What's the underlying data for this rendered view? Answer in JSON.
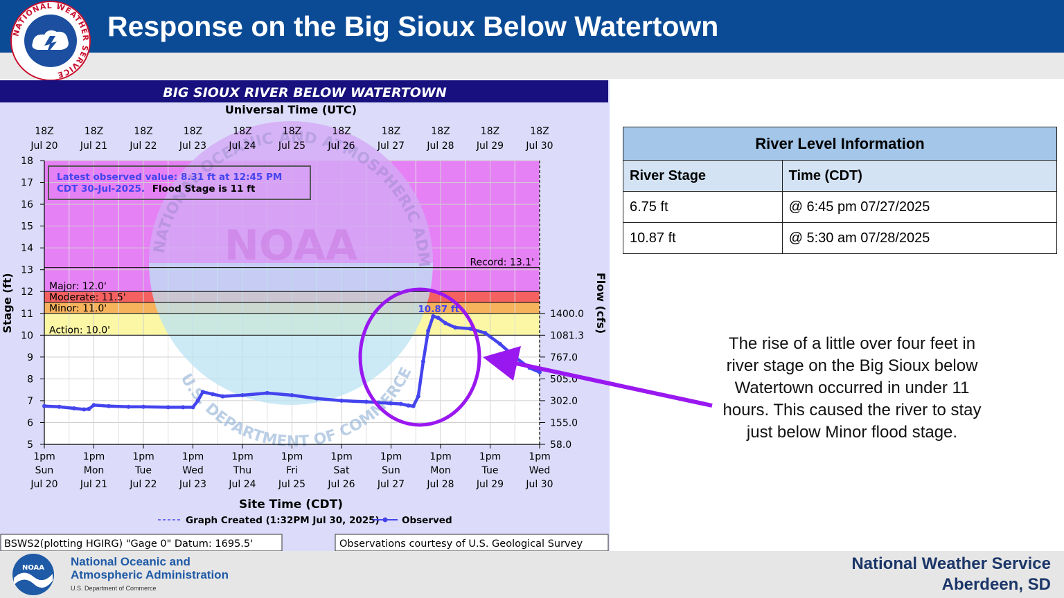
{
  "header": {
    "title": "Response on the Big Sioux Below Watertown"
  },
  "nws_logo": {
    "text": "NATIONAL WEATHER SERVICE"
  },
  "chart_data": {
    "type": "line",
    "title": "BIG SIOUX RIVER BELOW WATERTOWN",
    "top_axis_title": "Universal Time (UTC)",
    "bottom_axis_title": "Site Time (CDT)",
    "ylabel": "Stage (ft)",
    "y2label": "Flow (cfs)",
    "ylim": [
      5,
      18
    ],
    "yticks": [
      "5",
      "6",
      "7",
      "8",
      "9",
      "10",
      "11",
      "12",
      "13",
      "14",
      "15",
      "16",
      "17",
      "18"
    ],
    "flow_ticks": [
      {
        "stage": 5,
        "label": "58.0"
      },
      {
        "stage": 6,
        "label": "155.0"
      },
      {
        "stage": 7,
        "label": "302.0"
      },
      {
        "stage": 8,
        "label": "505.0"
      },
      {
        "stage": 9,
        "label": "767.0"
      },
      {
        "stage": 10,
        "label": "1081.3"
      },
      {
        "stage": 11,
        "label": "1400.0"
      }
    ],
    "xlim": [
      0,
      10
    ],
    "top_ticks": [
      {
        "a": "18Z",
        "b": "Jul 20"
      },
      {
        "a": "18Z",
        "b": "Jul 21"
      },
      {
        "a": "18Z",
        "b": "Jul 22"
      },
      {
        "a": "18Z",
        "b": "Jul 23"
      },
      {
        "a": "18Z",
        "b": "Jul 24"
      },
      {
        "a": "18Z",
        "b": "Jul 25"
      },
      {
        "a": "18Z",
        "b": "Jul 26"
      },
      {
        "a": "18Z",
        "b": "Jul 27"
      },
      {
        "a": "18Z",
        "b": "Jul 28"
      },
      {
        "a": "18Z",
        "b": "Jul 29"
      },
      {
        "a": "18Z",
        "b": "Jul 30"
      }
    ],
    "bottom_ticks": [
      {
        "a": "1pm",
        "b": "Sun",
        "c": "Jul 20"
      },
      {
        "a": "1pm",
        "b": "Mon",
        "c": "Jul 21"
      },
      {
        "a": "1pm",
        "b": "Tue",
        "c": "Jul 22"
      },
      {
        "a": "1pm",
        "b": "Wed",
        "c": "Jul 23"
      },
      {
        "a": "1pm",
        "b": "Thu",
        "c": "Jul 24"
      },
      {
        "a": "1pm",
        "b": "Fri",
        "c": "Jul 25"
      },
      {
        "a": "1pm",
        "b": "Sat",
        "c": "Jul 26"
      },
      {
        "a": "1pm",
        "b": "Sun",
        "c": "Jul 27"
      },
      {
        "a": "1pm",
        "b": "Mon",
        "c": "Jul 28"
      },
      {
        "a": "1pm",
        "b": "Tue",
        "c": "Jul 29"
      },
      {
        "a": "1pm",
        "b": "Wed",
        "c": "Jul 30"
      }
    ],
    "thresholds": [
      {
        "label": "Record: 13.1'",
        "value": 13.1
      },
      {
        "label": "Major: 12.0'",
        "value": 12.0
      },
      {
        "label": "Moderate: 11.5'",
        "value": 11.5
      },
      {
        "label": "Minor: 11.0'",
        "value": 11.0
      },
      {
        "label": "Action: 10.0'",
        "value": 10.0
      }
    ],
    "bands": [
      {
        "from": 13.1,
        "to": 18,
        "color": "#e680f5"
      },
      {
        "from": 12.0,
        "to": 13.1,
        "color": "#e680f5"
      },
      {
        "from": 11.5,
        "to": 12.0,
        "color": "#f56060"
      },
      {
        "from": 11.0,
        "to": 11.5,
        "color": "#f7b25c"
      },
      {
        "from": 10.0,
        "to": 11.0,
        "color": "#fbf7a4"
      }
    ],
    "series": [
      {
        "name": "Observed",
        "color": "#4444ee",
        "x": [
          0,
          0.3,
          0.6,
          0.8,
          0.9,
          1.0,
          1.3,
          1.7,
          2.0,
          2.5,
          2.8,
          3.0,
          3.1,
          3.2,
          3.4,
          3.6,
          4.0,
          4.5,
          5.0,
          5.5,
          6.0,
          6.5,
          7.0,
          7.2,
          7.35,
          7.45,
          7.55,
          7.65,
          7.75,
          7.85,
          7.95,
          8.1,
          8.3,
          8.6,
          8.9,
          9.2,
          9.5,
          9.8,
          10.0
        ],
        "y": [
          6.75,
          6.72,
          6.65,
          6.6,
          6.62,
          6.8,
          6.75,
          6.72,
          6.72,
          6.7,
          6.7,
          6.7,
          7.0,
          7.4,
          7.3,
          7.2,
          7.25,
          7.35,
          7.25,
          7.1,
          7.0,
          6.95,
          6.88,
          6.85,
          6.78,
          6.75,
          7.2,
          8.8,
          10.2,
          10.87,
          10.8,
          10.55,
          10.35,
          10.3,
          10.1,
          9.6,
          9.0,
          8.5,
          8.31
        ]
      }
    ],
    "peak_label": "10.87 ft",
    "info_box": {
      "line1": "Latest observed value: 8.31 ft at 12:45 PM",
      "line2": "CDT 30-Jul-2025.",
      "line2_bold": "Flood Stage is 11 ft"
    },
    "legend": {
      "graph_created": "Graph Created (1:32PM Jul 30, 2025)",
      "observed": "Observed"
    },
    "watermark": {
      "center": "NOAA",
      "top_ring": "NATIONAL OCEANIC AND ATMOSPHERIC ADMINISTRATION",
      "bottom_ring": "U.S. DEPARTMENT OF COMMERCE"
    },
    "footer_left": "BSWS2(plotting HGIRG) \"Gage 0\" Datum: 1695.5'",
    "footer_right": "Observations courtesy of U.S. Geological Survey",
    "grid": true
  },
  "info_table": {
    "caption": "River Level Information",
    "col1": "River Stage",
    "col2": "Time (CDT)",
    "rows": [
      {
        "stage": "6.75 ft",
        "time": "@ 6:45 pm 07/27/2025"
      },
      {
        "stage": "10.87 ft",
        "time": "@ 5:30 am 07/28/2025"
      }
    ]
  },
  "callout": {
    "text": "The rise of a little over four feet in river stage on the Big Sioux below Watertown occurred in under 11 hours. This caused the river to stay just below Minor flood stage."
  },
  "footer": {
    "noaa_line1": "National Oceanic and",
    "noaa_line2": "Atmospheric Administration",
    "noaa_dept": "U.S. Department of Commerce",
    "nws_line1": "National Weather Service",
    "nws_line2": "Aberdeen, SD"
  },
  "colors": {
    "header": "#0b4b96",
    "observed": "#4444ee",
    "annotation": "#9a18f0"
  }
}
